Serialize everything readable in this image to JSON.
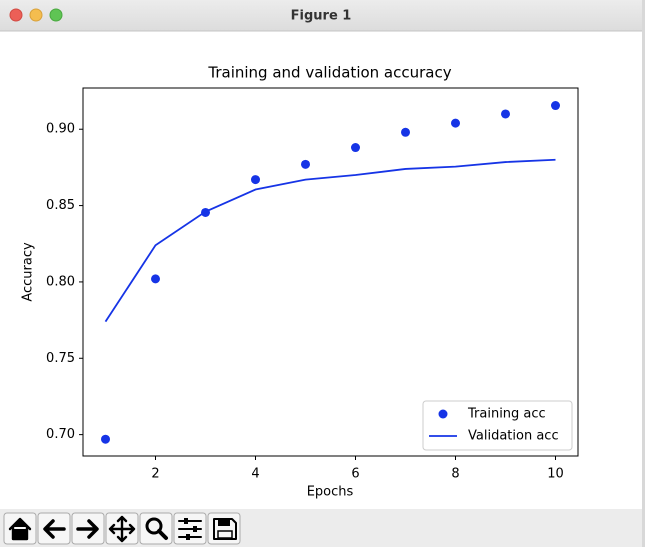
{
  "window": {
    "title": "Figure 1"
  },
  "chart_data": {
    "type": "scatter_line",
    "title": "Training and validation accuracy",
    "x_label": "Epochs",
    "y_label": "Accuracy",
    "x": [
      1,
      2,
      3,
      4,
      5,
      6,
      7,
      8,
      9,
      10
    ],
    "series": [
      {
        "name": "Training acc",
        "color": "#1634e6",
        "style": "points",
        "values": [
          0.697,
          0.802,
          0.8455,
          0.867,
          0.877,
          0.888,
          0.898,
          0.904,
          0.91,
          0.9155
        ]
      },
      {
        "name": "Validation acc",
        "color": "#1634e6",
        "style": "line",
        "values": [
          0.774,
          0.824,
          0.846,
          0.8605,
          0.867,
          0.87,
          0.874,
          0.8755,
          0.8785,
          0.88
        ]
      }
    ],
    "xlim": [
      0.55,
      10.45
    ],
    "xticks": [
      2,
      4,
      6,
      8,
      10
    ],
    "ylim": [
      0.686,
      0.927
    ],
    "yticks": [
      {
        "value": 0.7,
        "label": "0.70"
      },
      0.75,
      {
        "value": 0.8,
        "label": "0.80"
      },
      0.85,
      {
        "value": 0.9,
        "label": "0.90"
      }
    ],
    "legend": "lower right"
  }
}
